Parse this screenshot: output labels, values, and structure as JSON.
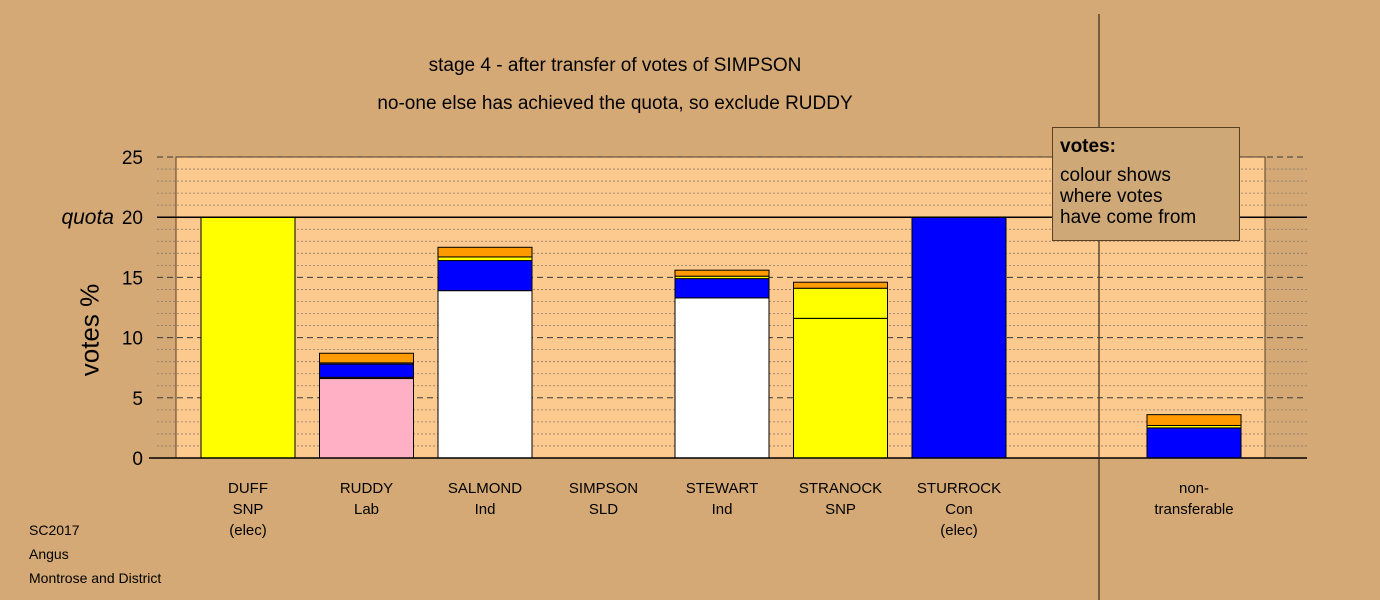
{
  "titles": {
    "line1": "stage 4 - after transfer of votes of SIMPSON",
    "line2": "no-one else has achieved the quota, so exclude RUDDY"
  },
  "legend": {
    "title": "votes:",
    "body": [
      "colour shows",
      "where votes",
      "have come from"
    ]
  },
  "footer": [
    "SC2017",
    "Angus",
    "Montrose and District"
  ],
  "chart_data": {
    "type": "bar",
    "stacked": true,
    "ylabel": "votes %",
    "ylim": [
      0,
      25
    ],
    "yticks": [
      0,
      5,
      10,
      15,
      20,
      25
    ],
    "quota": 20,
    "quota_label": "quota",
    "grid": "dashed horizontal lines every 1%",
    "colors": {
      "SNP": "#ffff00",
      "Lab": "#ffb0c4",
      "Ind": "#ffffff",
      "Con": "#0000ff",
      "SLD": "#ff9a00"
    },
    "candidates": [
      {
        "name": "DUFF",
        "party": "SNP",
        "status": "(elec)",
        "segments": [
          {
            "from": "SNP",
            "value": 20.0
          }
        ]
      },
      {
        "name": "RUDDY",
        "party": "Lab",
        "status": "",
        "segments": [
          {
            "from": "Lab",
            "value": 6.6
          },
          {
            "from": "SNP",
            "value": 0.1
          },
          {
            "from": "Con",
            "value": 1.1
          },
          {
            "from": "Ind",
            "value": 0.1
          },
          {
            "from": "SLD",
            "value": 0.8
          }
        ]
      },
      {
        "name": "SALMOND",
        "party": "Ind",
        "status": "",
        "segments": [
          {
            "from": "Ind",
            "value": 13.9
          },
          {
            "from": "Con",
            "value": 2.5
          },
          {
            "from": "SNP",
            "value": 0.3
          },
          {
            "from": "SLD",
            "value": 0.8
          }
        ]
      },
      {
        "name": "SIMPSON",
        "party": "SLD",
        "status": "",
        "segments": []
      },
      {
        "name": "STEWART",
        "party": "Ind",
        "status": "",
        "segments": [
          {
            "from": "Ind",
            "value": 13.3
          },
          {
            "from": "Con",
            "value": 1.6
          },
          {
            "from": "SNP",
            "value": 0.2
          },
          {
            "from": "SLD",
            "value": 0.5
          }
        ]
      },
      {
        "name": "STRANOCK",
        "party": "SNP",
        "status": "",
        "segments": [
          {
            "from": "SNP",
            "value": 11.6
          },
          {
            "from": "SNP",
            "value": 2.5
          },
          {
            "from": "SLD",
            "value": 0.5
          }
        ]
      },
      {
        "name": "STURROCK",
        "party": "Con",
        "status": "(elec)",
        "segments": [
          {
            "from": "Con",
            "value": 20.0
          }
        ]
      }
    ],
    "non_transferable": {
      "label": [
        "non-",
        "transferable"
      ],
      "segments": [
        {
          "from": "Con",
          "value": 2.5
        },
        {
          "from": "SNP",
          "value": 0.2
        },
        {
          "from": "SLD",
          "value": 0.9
        }
      ]
    }
  }
}
